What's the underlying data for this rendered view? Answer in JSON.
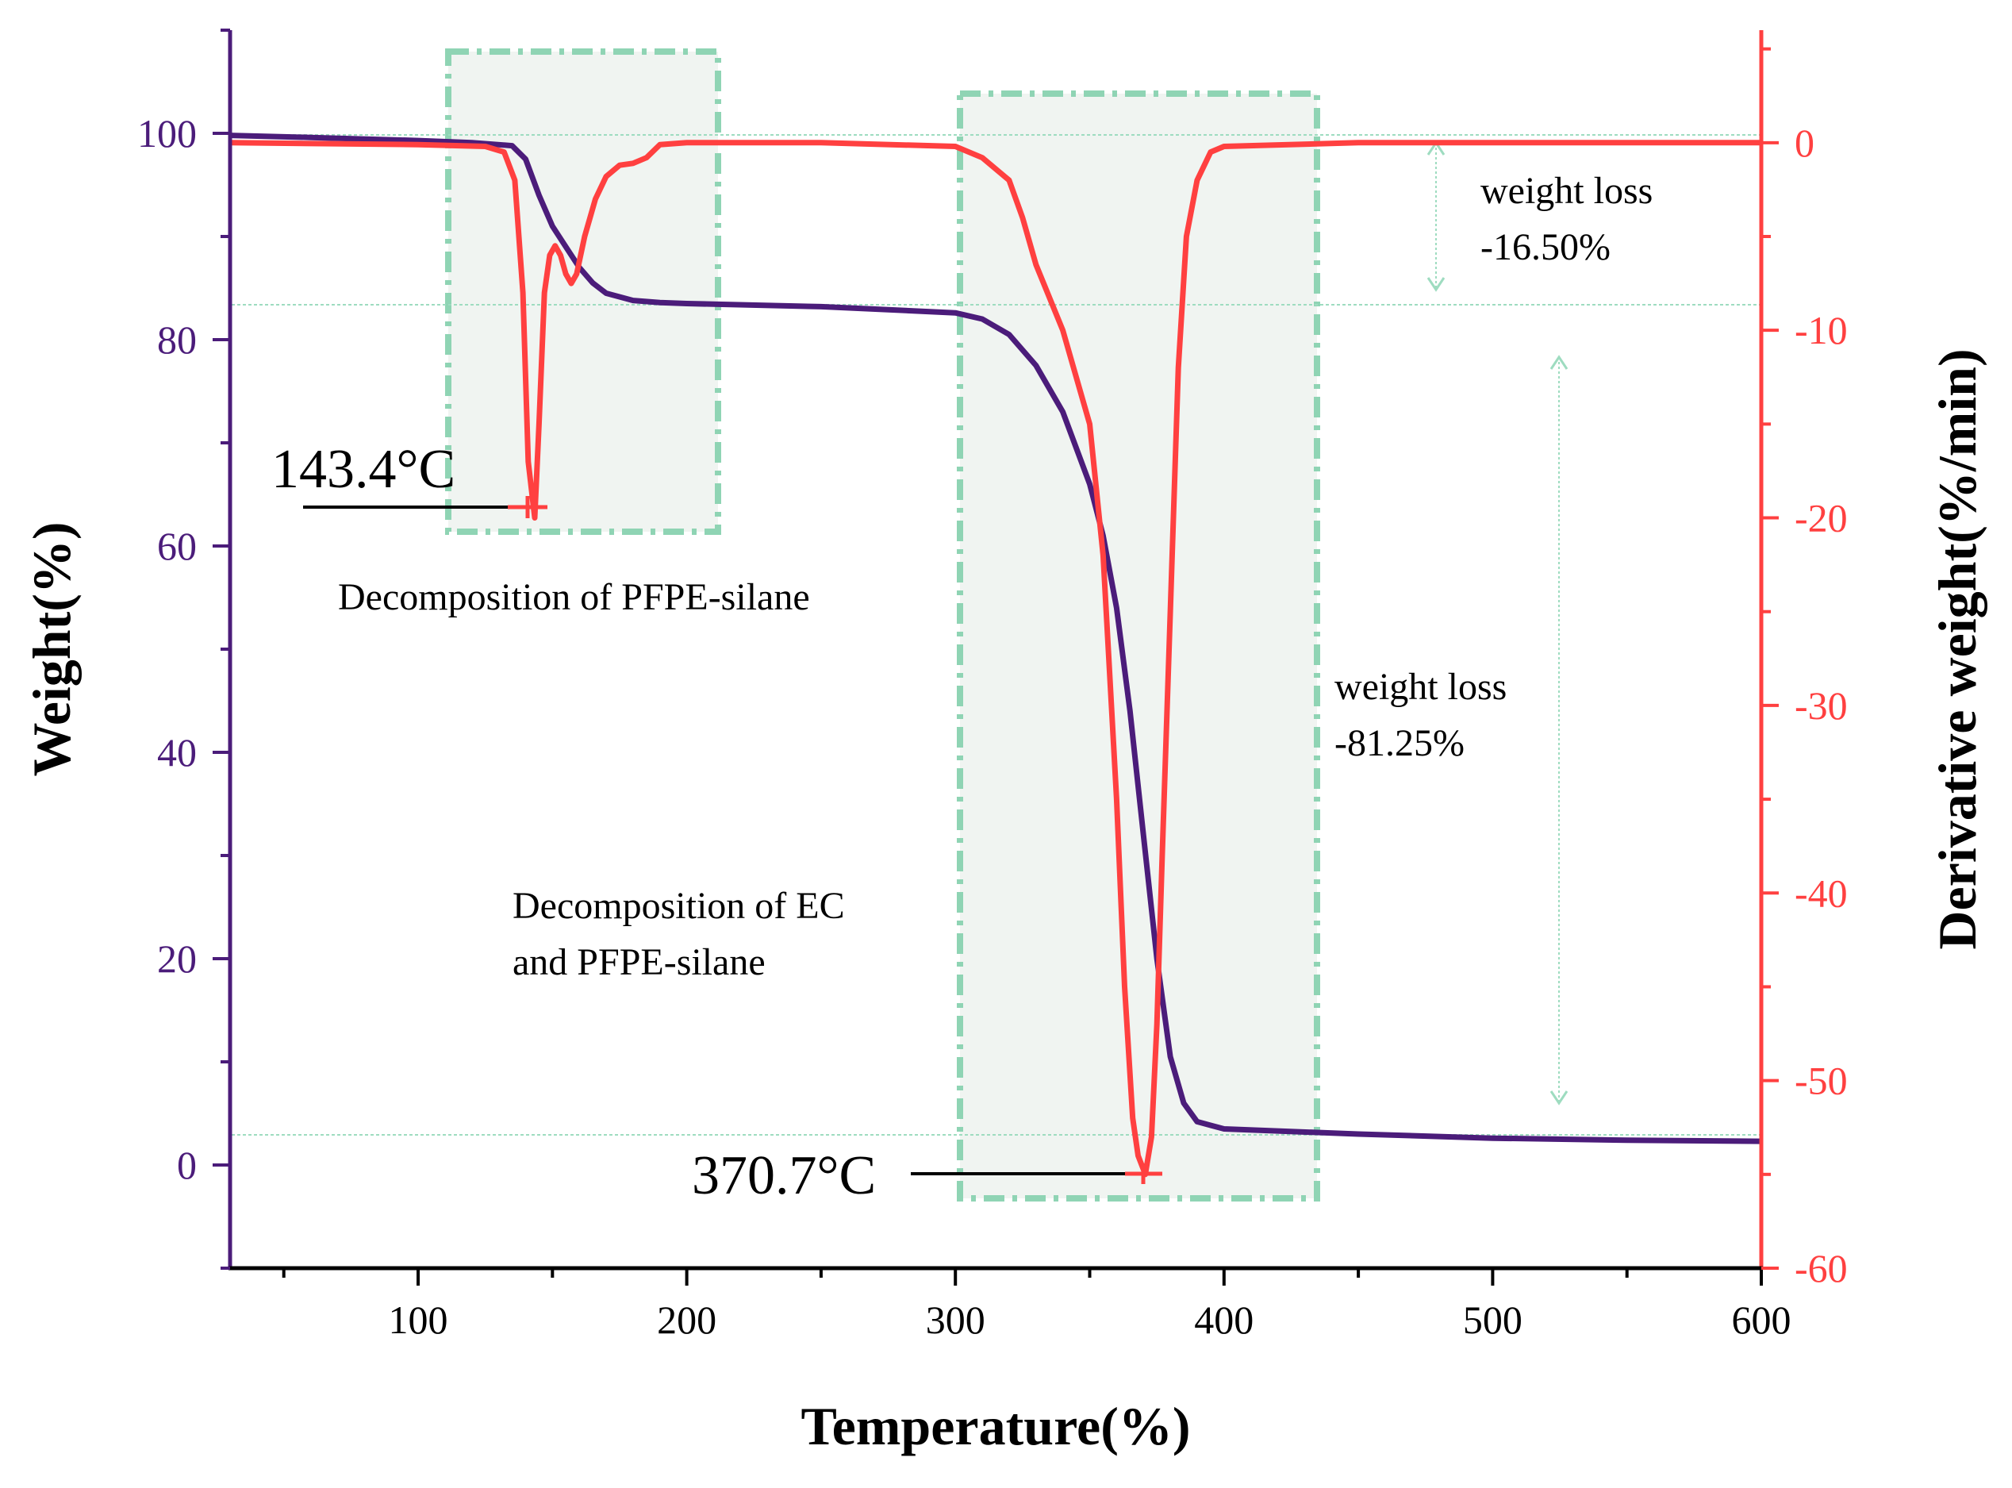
{
  "chart_data": {
    "type": "line",
    "xlabel": "Temperature(%)",
    "ylabel": "Weight(%)",
    "y2label": "Derivative weight(%/min)",
    "xlim": [
      30,
      600
    ],
    "ylim": [
      -10,
      110
    ],
    "y2lim": [
      -60,
      6
    ],
    "x_ticks": [
      100,
      200,
      300,
      400,
      500,
      600
    ],
    "y_ticks": [
      0,
      20,
      40,
      60,
      80,
      100
    ],
    "y2_ticks": [
      0,
      -10,
      -20,
      -30,
      -40,
      -50,
      -60
    ],
    "colors": {
      "weight": "#4b1c7a",
      "derivative": "#ff4040",
      "left_axis": "#4b1c7a",
      "right_axis": "#ff4040",
      "region": "#8fd4b4"
    },
    "series": [
      {
        "name": "Weight",
        "axis": "left",
        "x": [
          30,
          60,
          100,
          120,
          135,
          140,
          145,
          150,
          155,
          160,
          165,
          170,
          180,
          190,
          200,
          250,
          300,
          310,
          320,
          330,
          340,
          350,
          355,
          360,
          365,
          370,
          375,
          380,
          385,
          390,
          400,
          450,
          500,
          550,
          600
        ],
        "values": [
          99.8,
          99.6,
          99.3,
          99.1,
          98.8,
          97.5,
          94.0,
          91.0,
          89.0,
          87.0,
          85.5,
          84.5,
          83.8,
          83.6,
          83.5,
          83.2,
          82.6,
          82.0,
          80.5,
          77.5,
          73.0,
          66.0,
          61.0,
          54.0,
          44.0,
          32.0,
          20.0,
          10.5,
          6.0,
          4.2,
          3.5,
          3.0,
          2.6,
          2.4,
          2.3
        ]
      },
      {
        "name": "Derivative weight",
        "axis": "right",
        "x": [
          30,
          100,
          125,
          132,
          136,
          139,
          141,
          143.4,
          145,
          147,
          149,
          151,
          153,
          155,
          157,
          159,
          162,
          166,
          170,
          175,
          180,
          185,
          190,
          200,
          250,
          300,
          310,
          320,
          325,
          330,
          340,
          350,
          355,
          360,
          363,
          366,
          368,
          370.7,
          373,
          375,
          377,
          380,
          383,
          386,
          390,
          395,
          400,
          450,
          500,
          600
        ],
        "values": [
          0.0,
          -0.1,
          -0.2,
          -0.5,
          -2.0,
          -8.0,
          -17.0,
          -20.0,
          -15.0,
          -8.0,
          -6.0,
          -5.5,
          -6.0,
          -7.0,
          -7.5,
          -7.0,
          -5.0,
          -3.0,
          -1.8,
          -1.2,
          -1.1,
          -0.8,
          -0.1,
          0.0,
          0.0,
          -0.2,
          -0.8,
          -2.0,
          -4.0,
          -6.5,
          -10.0,
          -15.0,
          -22.0,
          -35.0,
          -45.0,
          -52.0,
          -54.0,
          -55.0,
          -53.0,
          -47.0,
          -38.0,
          -25.0,
          -12.0,
          -5.0,
          -2.0,
          -0.5,
          -0.2,
          0.0,
          0.0,
          0.0
        ]
      }
    ],
    "annotations": {
      "peak1_label": "143.4°C",
      "peak2_label": "370.7°C",
      "region1_label": "Decomposition of PFPE-silane",
      "region2_label_line1": "Decomposition of EC",
      "region2_label_line2": "and PFPE-silane",
      "loss1_line1": "weight loss",
      "loss1_line2": "-16.50%",
      "loss2_line1": "weight loss",
      "loss2_line2": "-81.25%"
    }
  }
}
